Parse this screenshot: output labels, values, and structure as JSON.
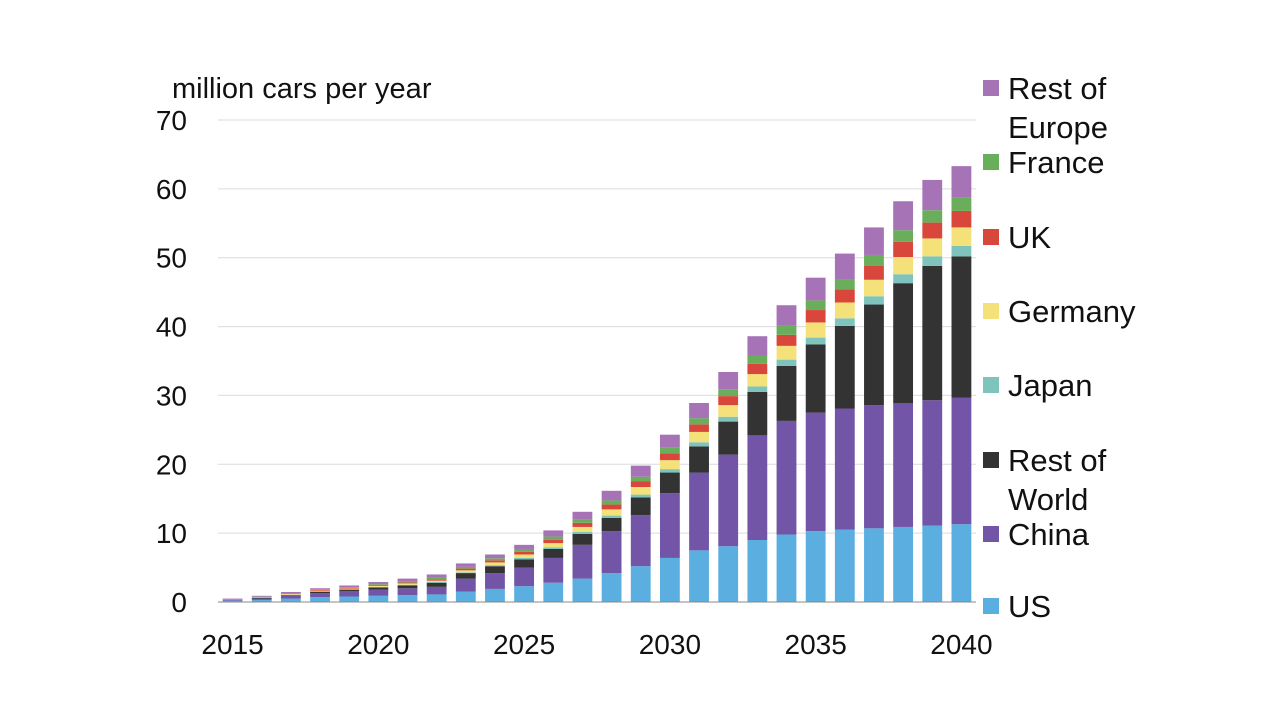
{
  "chart_data": {
    "type": "bar",
    "stacked": true,
    "ylabel": "million cars per year",
    "ylim": [
      0,
      70
    ],
    "yticks": [
      0,
      10,
      20,
      30,
      40,
      50,
      60,
      70
    ],
    "xtick_labels": [
      "2015",
      "2020",
      "2025",
      "2030",
      "2035",
      "2040"
    ],
    "grid": true,
    "legend_position": "right",
    "categories": [
      "2015",
      "2016",
      "2017",
      "2018",
      "2019",
      "2020",
      "2021",
      "2022",
      "2023",
      "2024",
      "2025",
      "2026",
      "2027",
      "2028",
      "2029",
      "2030",
      "2031",
      "2032",
      "2033",
      "2034",
      "2035",
      "2036",
      "2037",
      "2038",
      "2039",
      "2040"
    ],
    "series": [
      {
        "name": "US",
        "color": "#5aafe0",
        "values": [
          0.2,
          0.3,
          0.5,
          0.7,
          0.8,
          0.9,
          1.0,
          1.1,
          1.5,
          1.9,
          2.3,
          2.8,
          3.4,
          4.2,
          5.2,
          6.4,
          7.5,
          8.1,
          9.0,
          9.8,
          10.3,
          10.5,
          10.7,
          10.9,
          11.1,
          11.3
        ]
      },
      {
        "name": "China",
        "color": "#7255a6",
        "values": [
          0.1,
          0.2,
          0.4,
          0.6,
          0.8,
          0.9,
          1.0,
          1.1,
          1.9,
          2.3,
          2.7,
          3.6,
          4.9,
          6.1,
          7.4,
          9.4,
          11.3,
          13.3,
          15.2,
          16.5,
          17.2,
          17.6,
          17.9,
          18.0,
          18.2,
          18.4
        ]
      },
      {
        "name": "Rest of World",
        "color": "#333333",
        "values": [
          0.05,
          0.1,
          0.1,
          0.2,
          0.2,
          0.3,
          0.4,
          0.6,
          0.8,
          1.0,
          1.2,
          1.3,
          1.6,
          1.9,
          2.6,
          3.0,
          3.8,
          4.8,
          6.3,
          8.0,
          9.9,
          12.0,
          14.6,
          17.4,
          19.5,
          20.5
        ]
      },
      {
        "name": "Japan",
        "color": "#7ec4bd",
        "values": [
          0.02,
          0.03,
          0.05,
          0.05,
          0.05,
          0.08,
          0.1,
          0.1,
          0.1,
          0.15,
          0.2,
          0.25,
          0.3,
          0.35,
          0.4,
          0.5,
          0.6,
          0.7,
          0.8,
          0.9,
          1.0,
          1.1,
          1.2,
          1.3,
          1.4,
          1.5
        ]
      },
      {
        "name": "Germany",
        "color": "#f4e179",
        "values": [
          0.03,
          0.05,
          0.1,
          0.1,
          0.1,
          0.15,
          0.2,
          0.2,
          0.3,
          0.4,
          0.5,
          0.6,
          0.7,
          0.9,
          1.1,
          1.3,
          1.5,
          1.7,
          1.8,
          2.0,
          2.2,
          2.3,
          2.4,
          2.5,
          2.6,
          2.7
        ]
      },
      {
        "name": "UK",
        "color": "#d9463b",
        "values": [
          0.02,
          0.05,
          0.07,
          0.1,
          0.1,
          0.12,
          0.15,
          0.2,
          0.25,
          0.3,
          0.4,
          0.5,
          0.6,
          0.7,
          0.8,
          1.0,
          1.1,
          1.3,
          1.5,
          1.6,
          1.8,
          1.9,
          2.0,
          2.2,
          2.3,
          2.4
        ]
      },
      {
        "name": "France",
        "color": "#6aad5a",
        "values": [
          0.02,
          0.05,
          0.07,
          0.1,
          0.1,
          0.12,
          0.15,
          0.2,
          0.25,
          0.3,
          0.4,
          0.45,
          0.5,
          0.6,
          0.7,
          0.8,
          0.9,
          1.0,
          1.2,
          1.3,
          1.4,
          1.5,
          1.6,
          1.7,
          1.8,
          1.9
        ]
      },
      {
        "name": "Rest of Europe",
        "color": "#a673b6",
        "values": [
          0.06,
          0.12,
          0.16,
          0.15,
          0.25,
          0.33,
          0.4,
          0.5,
          0.5,
          0.55,
          0.6,
          0.9,
          1.1,
          1.4,
          1.6,
          1.9,
          2.2,
          2.5,
          2.8,
          3.0,
          3.3,
          3.7,
          4.0,
          4.2,
          4.4,
          4.6
        ]
      }
    ],
    "legend_order": [
      "Rest of Europe",
      "France",
      "UK",
      "Germany",
      "Japan",
      "Rest of World",
      "China",
      "US"
    ]
  },
  "legend": {
    "rest_of_europe": [
      "Rest of",
      "Europe"
    ],
    "france": [
      "France"
    ],
    "uk": [
      "UK"
    ],
    "germany": [
      "Germany"
    ],
    "japan": [
      "Japan"
    ],
    "rest_of_world": [
      "Rest of",
      "World"
    ],
    "china": [
      "China"
    ],
    "us": [
      "US"
    ]
  }
}
